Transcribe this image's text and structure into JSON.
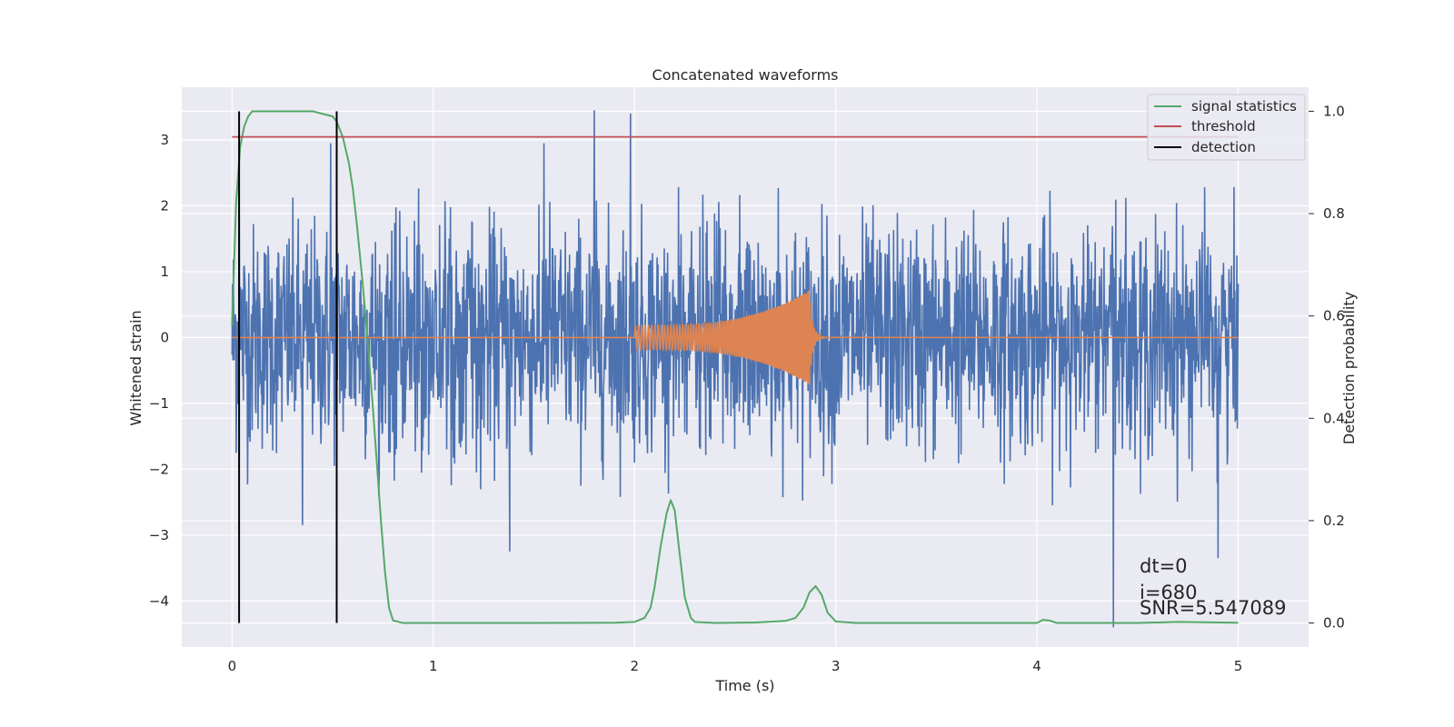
{
  "chart_data": {
    "type": "line",
    "title": "Concatenated waveforms",
    "xlabel": "Time (s)",
    "ylabel": "Whitened strain",
    "y2label": "Detection probability",
    "xlim": [
      -0.25,
      5.35
    ],
    "ylim": [
      -4.7,
      3.8
    ],
    "y2lim": [
      -0.047,
      1.047
    ],
    "xticks": [
      "0",
      "1",
      "2",
      "3",
      "4",
      "5"
    ],
    "yticks": [
      "3",
      "2",
      "1",
      "0",
      "−1",
      "−2",
      "−3",
      "−4"
    ],
    "y2ticks": [
      "1.0",
      "0.8",
      "0.6",
      "0.4",
      "0.2",
      "0.0"
    ],
    "grid": true,
    "legend_position": "top-right",
    "colors": {
      "strain": "#4c72b0",
      "injected": "#dd8452",
      "signal_statistics": "#55a868",
      "threshold": "#c44e52",
      "detection": "#000000",
      "background": "#eaeaf2"
    },
    "legend": [
      "signal statistics",
      "threshold",
      "detection"
    ],
    "series": [
      {
        "name": "signal statistics",
        "axis": "right",
        "x": [
          0.0,
          0.02,
          0.04,
          0.06,
          0.08,
          0.1,
          0.15,
          0.2,
          0.3,
          0.4,
          0.45,
          0.5,
          0.52,
          0.55,
          0.58,
          0.6,
          0.62,
          0.65,
          0.68,
          0.7,
          0.72,
          0.74,
          0.76,
          0.78,
          0.8,
          0.85,
          1.0,
          1.5,
          1.9,
          2.0,
          2.05,
          2.08,
          2.1,
          2.13,
          2.16,
          2.18,
          2.2,
          2.22,
          2.25,
          2.28,
          2.3,
          2.4,
          2.6,
          2.75,
          2.8,
          2.84,
          2.87,
          2.9,
          2.93,
          2.96,
          3.0,
          3.1,
          3.5,
          4.0,
          4.03,
          4.06,
          4.1,
          4.5,
          4.7,
          5.0
        ],
        "y": [
          0.58,
          0.82,
          0.93,
          0.97,
          0.99,
          1.0,
          1.0,
          1.0,
          1.0,
          1.0,
          0.995,
          0.99,
          0.98,
          0.95,
          0.9,
          0.85,
          0.78,
          0.66,
          0.52,
          0.42,
          0.31,
          0.2,
          0.1,
          0.03,
          0.005,
          0.0,
          0.0,
          0.0,
          0.0005,
          0.002,
          0.01,
          0.03,
          0.07,
          0.15,
          0.215,
          0.24,
          0.22,
          0.15,
          0.05,
          0.01,
          0.002,
          0.0,
          0.001,
          0.004,
          0.01,
          0.03,
          0.06,
          0.072,
          0.055,
          0.02,
          0.003,
          0.0,
          0.0,
          0.0,
          0.006,
          0.005,
          0.0,
          0.0,
          0.002,
          0.0005
        ]
      },
      {
        "name": "threshold",
        "axis": "right",
        "x": [
          0.0,
          5.0
        ],
        "y": [
          0.95,
          0.95
        ]
      },
      {
        "name": "detection",
        "axis": "right",
        "x": [
          0.035,
          0.52
        ],
        "y": [
          0.0,
          1.0
        ]
      }
    ],
    "strain": {
      "name": "",
      "axis": "left",
      "x_range": [
        0.0,
        5.0
      ],
      "typical_envelope": [
        -2.0,
        2.0
      ],
      "peaks": [
        {
          "x": 0.035,
          "y": 2.35
        },
        {
          "x": 0.49,
          "y": 2.95
        },
        {
          "x": 0.52,
          "y": 3.05
        },
        {
          "x": 1.55,
          "y": 2.95
        },
        {
          "x": 1.8,
          "y": 3.45
        },
        {
          "x": 1.98,
          "y": 3.4
        },
        {
          "x": 4.38,
          "y": -4.4
        },
        {
          "x": 4.9,
          "y": -3.35
        },
        {
          "x": 0.35,
          "y": -2.85
        },
        {
          "x": 1.38,
          "y": -3.25
        }
      ]
    },
    "injected_waveform": {
      "name": "",
      "axis": "left",
      "x_start": 2.0,
      "x_merger": 2.87,
      "start_amplitude": 0.18,
      "peak_amplitude": 0.72
    },
    "annotations": [
      "dt=0",
      "i=680",
      "SNR=5.547089"
    ]
  }
}
